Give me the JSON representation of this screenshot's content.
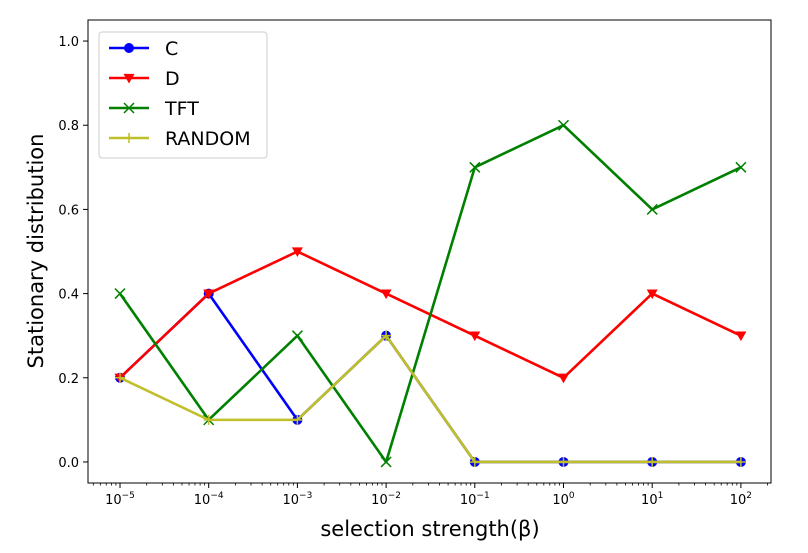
{
  "chart_data": {
    "type": "line",
    "xscale": "log",
    "x": [
      "1e-5",
      "1e-4",
      "1e-3",
      "1e-2",
      "1e-1",
      "1e0",
      "1e1",
      "1e2"
    ],
    "x_tick_labels": [
      {
        "base": "10",
        "exp": "−5"
      },
      {
        "base": "10",
        "exp": "−4"
      },
      {
        "base": "10",
        "exp": "−3"
      },
      {
        "base": "10",
        "exp": "−2"
      },
      {
        "base": "10",
        "exp": "−1"
      },
      {
        "base": "10",
        "exp": "0"
      },
      {
        "base": "10",
        "exp": "1"
      },
      {
        "base": "10",
        "exp": "2"
      }
    ],
    "y_ticks": [
      "0.0",
      "0.2",
      "0.4",
      "0.6",
      "0.8",
      "1.0"
    ],
    "ylim": [
      -0.05,
      1.05
    ],
    "xlabel": "selection strength(β)",
    "ylabel": "Stationary distribution",
    "legend_position": "upper-left",
    "grid": false,
    "series": [
      {
        "name": "C",
        "color": "#0000ff",
        "marker": "circle",
        "values": [
          0.2,
          0.4,
          0.1,
          0.3,
          0.0,
          0.0,
          0.0,
          0.0
        ]
      },
      {
        "name": "D",
        "color": "#ff0000",
        "marker": "triangle-down",
        "values": [
          0.2,
          0.4,
          0.5,
          0.4,
          0.3,
          0.2,
          0.4,
          0.3
        ]
      },
      {
        "name": "TFT",
        "color": "#008000",
        "marker": "x",
        "values": [
          0.4,
          0.1,
          0.3,
          0.0,
          0.7,
          0.8,
          0.6,
          0.7
        ]
      },
      {
        "name": "RANDOM",
        "color": "#bfbf29",
        "marker": "plus",
        "values": [
          0.2,
          0.1,
          0.1,
          0.3,
          0.0,
          0.0,
          0.0,
          0.0
        ]
      }
    ]
  }
}
